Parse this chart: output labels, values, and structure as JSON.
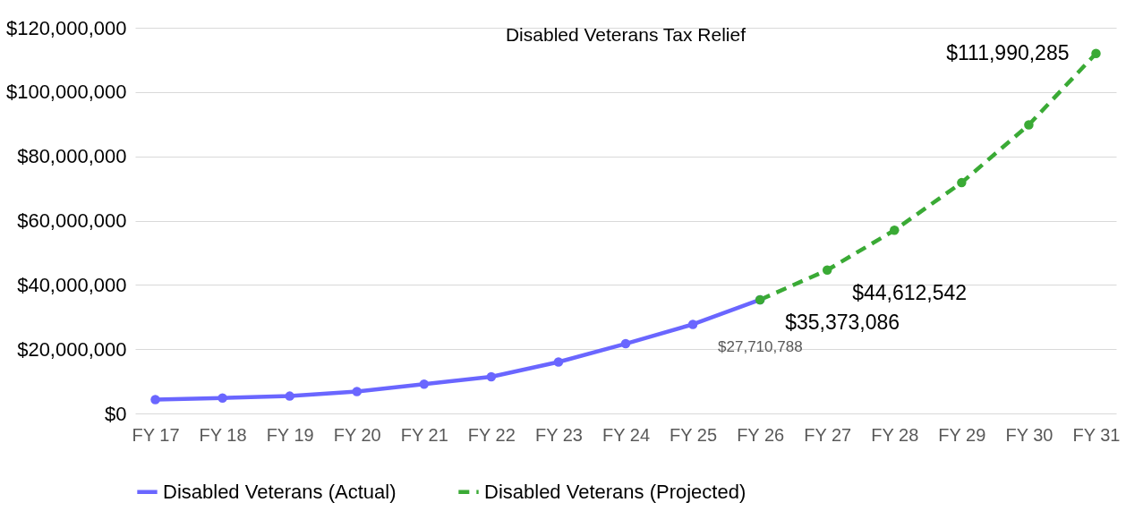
{
  "chart_data": {
    "type": "line",
    "title": "Disabled Veterans Tax Relief",
    "categories": [
      "FY 17",
      "FY 18",
      "FY 19",
      "FY 20",
      "FY 21",
      "FY 22",
      "FY 23",
      "FY 24",
      "FY 25",
      "FY 26",
      "FY 27",
      "FY 28",
      "FY 29",
      "FY 30",
      "FY 31"
    ],
    "series": [
      {
        "name": "Disabled Veterans (Actual)",
        "color": "#6a66ff",
        "line_style": "solid",
        "values": [
          4300000,
          4800000,
          5400000,
          6800000,
          9100000,
          11400000,
          16000000,
          21700000,
          27710788,
          35373086,
          null,
          null,
          null,
          null,
          null
        ],
        "value_labels": [
          null,
          null,
          null,
          null,
          null,
          null,
          null,
          null,
          "$27,710,788",
          null,
          null,
          null,
          null,
          null,
          null
        ]
      },
      {
        "name": "Disabled Veterans (Projected)",
        "color": "#3aaa35",
        "line_style": "dashed",
        "values": [
          null,
          null,
          null,
          null,
          null,
          null,
          null,
          null,
          null,
          35373086,
          44612542,
          57000000,
          71800000,
          89800000,
          111990285
        ],
        "value_labels": [
          null,
          null,
          null,
          null,
          null,
          null,
          null,
          null,
          null,
          "$35,373,086",
          "$44,612,542",
          null,
          null,
          null,
          "$111,990,285"
        ]
      }
    ],
    "ylim": [
      0,
      120000000
    ],
    "yticks": [
      {
        "value": 0,
        "label": "$0"
      },
      {
        "value": 20000000,
        "label": "$20,000,000"
      },
      {
        "value": 40000000,
        "label": "$40,000,000"
      },
      {
        "value": 60000000,
        "label": "$60,000,000"
      },
      {
        "value": 80000000,
        "label": "$80,000,000"
      },
      {
        "value": 100000000,
        "label": "$100,000,000"
      },
      {
        "value": 120000000,
        "label": "$120,000,000"
      }
    ],
    "grid": "y",
    "legend": "bottom",
    "marker": "circle"
  }
}
